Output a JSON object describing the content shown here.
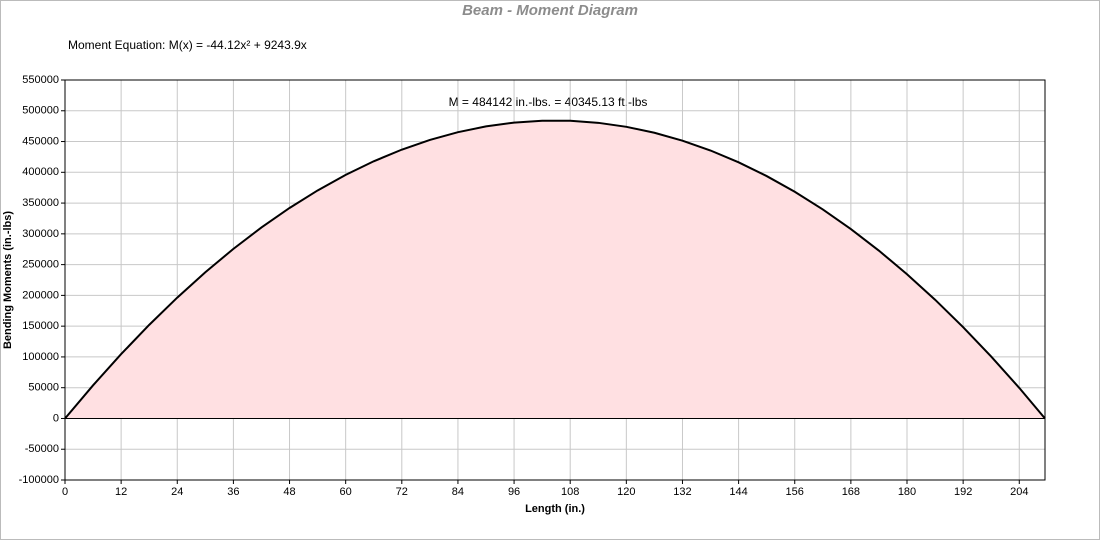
{
  "chart_data": {
    "type": "area",
    "title": "Beam - Moment Diagram",
    "equation": "Moment Equation:  M(x) = -44.12x² + 9243.9x",
    "annotation": "M = 484142 in.-lbs. = 40345.13 ft.-lbs",
    "x_label": "Length (in.)",
    "y_label": "Bending Moments (in.-lbs)",
    "x": [
      0,
      6,
      12,
      18,
      24,
      30,
      36,
      42,
      48,
      54,
      60,
      66,
      72,
      78,
      84,
      90,
      96,
      102,
      108,
      114,
      120,
      126,
      132,
      138,
      144,
      150,
      156,
      162,
      168,
      174,
      180,
      186,
      192,
      198,
      204,
      209.5
    ],
    "values": [
      0,
      53875,
      104574,
      152095,
      196440,
      237609,
      275601,
      310416,
      342055,
      370517,
      395802,
      417911,
      436843,
      452598,
      465177,
      474579,
      480805,
      483853,
      483726,
      480421,
      473940,
      464283,
      451448,
      435436,
      416249,
      393885,
      368344,
      339627,
      307732,
      272662,
      234414,
      192990,
      148389,
      100612,
      49658,
      0
    ],
    "color": "#000000",
    "fill": "#ffe0e2",
    "xlim": [
      0,
      209.5
    ],
    "xticks": [
      0,
      12,
      24,
      36,
      48,
      60,
      72,
      84,
      96,
      108,
      120,
      132,
      144,
      156,
      168,
      180,
      192,
      204
    ],
    "ylim": [
      -100000,
      550000
    ],
    "yticks": [
      -100000,
      -50000,
      0,
      50000,
      100000,
      150000,
      200000,
      250000,
      300000,
      350000,
      400000,
      450000,
      500000,
      550000
    ],
    "grid": true
  }
}
